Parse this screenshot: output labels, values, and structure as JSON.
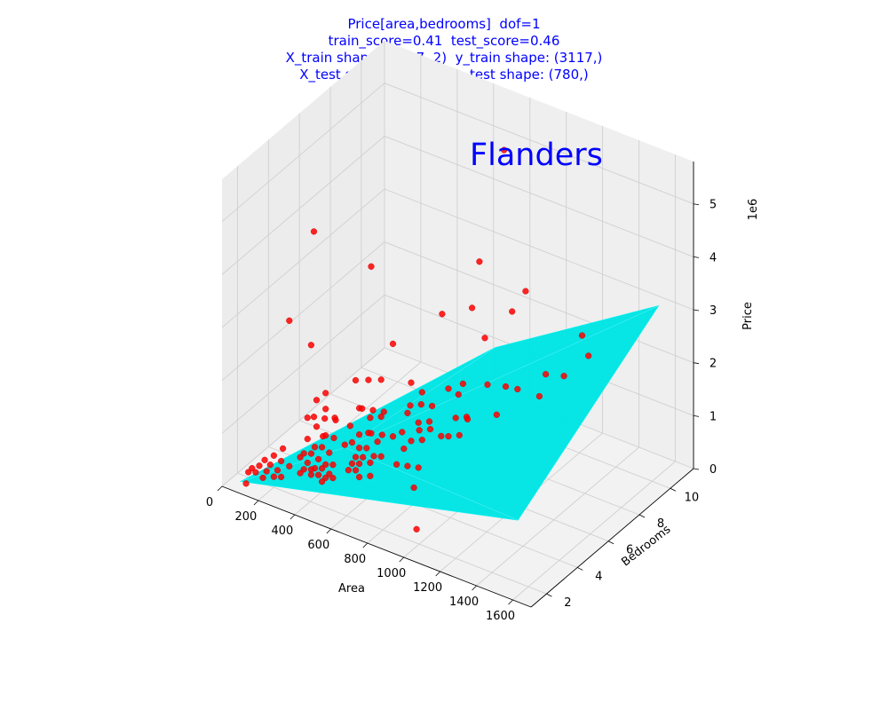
{
  "figure": {
    "title_lines": [
      "Price[area,bedrooms]  dof=1",
      "train_score=0.41  test_score=0.46",
      "X_train shape: (3117, 2)  y_train shape: (3117,)",
      "X_test shape: (780, 2)  y_test shape: (780,)"
    ],
    "region_title": "Flanders"
  },
  "chart_data": {
    "type": "scatter",
    "projection": "3d",
    "xlabel": "Area",
    "ylabel": "Bedrooms",
    "zlabel": "Price",
    "z_offset_label": "1e6",
    "xlim": [
      0,
      1700
    ],
    "ylim": [
      1,
      11.5
    ],
    "zlim": [
      0,
      5.8
    ],
    "x_ticks": [
      0,
      200,
      400,
      600,
      800,
      1000,
      1200,
      1400,
      1600
    ],
    "y_ticks": [
      2,
      4,
      6,
      8,
      10
    ],
    "z_ticks": [
      0,
      1,
      2,
      3,
      4,
      5
    ],
    "x_tick_labels": [
      "0",
      "200",
      "400",
      "600",
      "800",
      "1000",
      "1200",
      "1400",
      "1600"
    ],
    "y_tick_labels": [
      "2",
      "4",
      "6",
      "8",
      "10"
    ],
    "z_tick_labels": [
      "0",
      "1",
      "2",
      "3",
      "4",
      "5"
    ],
    "grid": true,
    "colors": {
      "points": "#ff0000",
      "surface": "#00e5e5",
      "pane": "#f2f2f2",
      "grid": "#d0d0d0"
    },
    "fit_surface": {
      "description": "linear regression plane, dof=1",
      "vertices": [
        [
          60,
          1.5,
          0.05
        ],
        [
          1500,
          2.5,
          1.0
        ],
        [
          1550,
          11.0,
          3.0
        ],
        [
          650,
          11.0,
          1.0
        ]
      ]
    },
    "series": [
      {
        "values_note": "test set points (area, bedrooms, price in 1e6)",
        "points": [
          [
            1500,
            3,
            5.2
          ],
          [
            700,
            11,
            4.8
          ],
          [
            250,
            4,
            4.4
          ],
          [
            480,
            5,
            3.8
          ],
          [
            820,
            8,
            3.6
          ],
          [
            950,
            6,
            3.4
          ],
          [
            200,
            3,
            2.9
          ],
          [
            320,
            3,
            2.6
          ],
          [
            600,
            5,
            2.5
          ],
          [
            700,
            7,
            2.7
          ],
          [
            1000,
            8,
            2.9
          ],
          [
            1200,
            6,
            2.2
          ],
          [
            1300,
            9,
            2.6
          ],
          [
            800,
            4,
            0.3
          ],
          [
            900,
            3,
            -0.1
          ],
          [
            400,
            3,
            1.8
          ],
          [
            480,
            4,
            1.9
          ],
          [
            550,
            4,
            2.0
          ],
          [
            620,
            4,
            2.1
          ],
          [
            700,
            5,
            1.9
          ],
          [
            760,
            5,
            1.8
          ],
          [
            820,
            6,
            1.7
          ],
          [
            900,
            6,
            1.9
          ],
          [
            950,
            7,
            1.7
          ],
          [
            1050,
            7,
            1.8
          ],
          [
            350,
            3,
            1.6
          ],
          [
            400,
            3,
            1.5
          ],
          [
            450,
            3,
            1.4
          ],
          [
            500,
            4,
            1.4
          ],
          [
            560,
            4,
            1.3
          ],
          [
            620,
            4,
            1.4
          ],
          [
            680,
            5,
            1.3
          ],
          [
            740,
            5,
            1.2
          ],
          [
            800,
            5,
            1.3
          ],
          [
            860,
            6,
            1.2
          ],
          [
            920,
            6,
            1.3
          ],
          [
            1000,
            7,
            1.2
          ],
          [
            300,
            3,
            1.2
          ],
          [
            350,
            3,
            1.1
          ],
          [
            400,
            3,
            1.0
          ],
          [
            450,
            4,
            1.0
          ],
          [
            500,
            4,
            0.9
          ],
          [
            550,
            4,
            1.0
          ],
          [
            600,
            4,
            0.9
          ],
          [
            650,
            5,
            0.9
          ],
          [
            700,
            5,
            0.8
          ],
          [
            760,
            5,
            0.9
          ],
          [
            820,
            6,
            0.8
          ],
          [
            880,
            6,
            0.9
          ],
          [
            250,
            2,
            0.8
          ],
          [
            300,
            3,
            0.8
          ],
          [
            340,
            3,
            0.7
          ],
          [
            380,
            3,
            0.75
          ],
          [
            420,
            3,
            0.7
          ],
          [
            460,
            4,
            0.7
          ],
          [
            500,
            4,
            0.65
          ],
          [
            540,
            4,
            0.7
          ],
          [
            580,
            4,
            0.6
          ],
          [
            620,
            4,
            0.65
          ],
          [
            660,
            5,
            0.6
          ],
          [
            200,
            2,
            0.6
          ],
          [
            240,
            2,
            0.55
          ],
          [
            280,
            3,
            0.5
          ],
          [
            320,
            3,
            0.55
          ],
          [
            360,
            3,
            0.5
          ],
          [
            400,
            3,
            0.45
          ],
          [
            440,
            3,
            0.5
          ],
          [
            480,
            4,
            0.45
          ],
          [
            520,
            4,
            0.5
          ],
          [
            560,
            4,
            0.45
          ],
          [
            150,
            2,
            0.45
          ],
          [
            180,
            2,
            0.4
          ],
          [
            220,
            2,
            0.35
          ],
          [
            260,
            3,
            0.4
          ],
          [
            300,
            3,
            0.35
          ],
          [
            340,
            3,
            0.3
          ],
          [
            380,
            3,
            0.35
          ],
          [
            420,
            3,
            0.3
          ],
          [
            460,
            4,
            0.3
          ],
          [
            500,
            4,
            0.35
          ],
          [
            120,
            2,
            0.3
          ],
          [
            160,
            2,
            0.25
          ],
          [
            200,
            2,
            0.2
          ],
          [
            240,
            2,
            0.25
          ],
          [
            280,
            3,
            0.2
          ],
          [
            320,
            3,
            0.25
          ],
          [
            360,
            3,
            0.2
          ],
          [
            400,
            3,
            0.2
          ],
          [
            440,
            3,
            0.25
          ],
          [
            480,
            4,
            0.2
          ],
          [
            80,
            2,
            0.2
          ],
          [
            100,
            2,
            0.15
          ],
          [
            140,
            2,
            0.1
          ],
          [
            60,
            2,
            0.1
          ],
          [
            90,
            1.5,
            0.05
          ],
          [
            200,
            3,
            0.15
          ],
          [
            260,
            3,
            0.1
          ],
          [
            320,
            3,
            0.15
          ],
          [
            380,
            3,
            0.1
          ],
          [
            440,
            4,
            0.15
          ],
          [
            500,
            4,
            0.1
          ],
          [
            560,
            4,
            0.2
          ],
          [
            620,
            5,
            0.25
          ],
          [
            680,
            5,
            0.3
          ],
          [
            740,
            5,
            0.35
          ],
          [
            300,
            4,
            0.6
          ],
          [
            360,
            4,
            0.65
          ],
          [
            420,
            4,
            0.6
          ],
          [
            480,
            5,
            0.65
          ],
          [
            540,
            5,
            0.7
          ],
          [
            600,
            5,
            0.75
          ],
          [
            660,
            6,
            0.7
          ],
          [
            720,
            6,
            0.8
          ],
          [
            780,
            6,
            0.75
          ],
          [
            840,
            7,
            0.9
          ],
          [
            250,
            4,
            0.9
          ],
          [
            310,
            4,
            0.95
          ],
          [
            370,
            4,
            1.0
          ],
          [
            430,
            5,
            1.05
          ],
          [
            490,
            5,
            1.1
          ],
          [
            550,
            5,
            1.15
          ],
          [
            610,
            6,
            1.1
          ],
          [
            670,
            6,
            1.2
          ],
          [
            730,
            6,
            1.25
          ],
          [
            790,
            7,
            1.3
          ],
          [
            1100,
            9,
            1.6
          ],
          [
            1150,
            8,
            1.5
          ],
          [
            1200,
            9,
            1.7
          ],
          [
            1250,
            10,
            1.9
          ],
          [
            850,
            8,
            2.2
          ]
        ]
      }
    ]
  }
}
